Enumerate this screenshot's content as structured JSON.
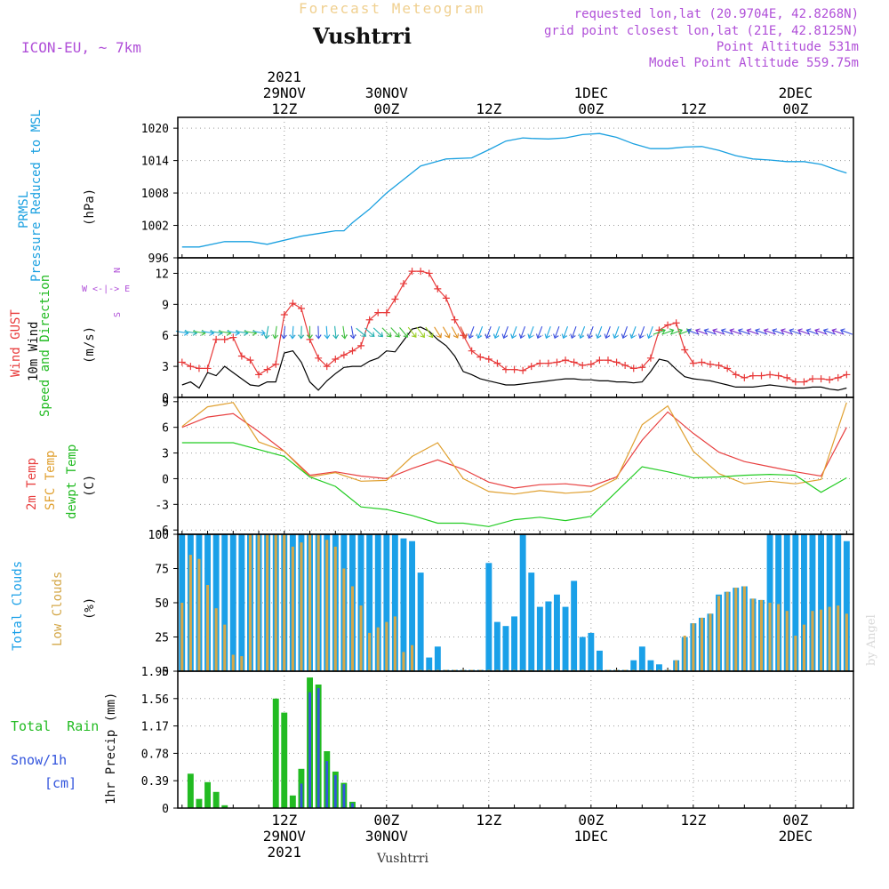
{
  "header": {
    "subtitle": "Forecast Meteogram",
    "title": "Vushtrri",
    "model": "ICON-EU, ~ 7km",
    "requested": "requested lon,lat (20.9704E, 42.8268N)",
    "grid_point": "grid point closest lon,lat (21E, 42.8125N)",
    "point_altitude": "Point Altitude 531m",
    "model_altitude": "Model Point Altitude 559.75m"
  },
  "footer": {
    "station": "Vushtrri"
  },
  "watermark": "by Angel",
  "colors": {
    "pressure": "#1aa0e0",
    "gust": "#e83a3a",
    "wind10": "#000000",
    "direction": "#22cc22",
    "temp2m": "#e84040",
    "sfctemp": "#e0a030",
    "dewpt": "#22cc22",
    "totalcloud": "#1aa0e8",
    "lowcloud": "#d4a84a",
    "rain": "#22bb22",
    "snow": "#3355dd",
    "meta": "#b04fd8"
  },
  "time_axis": {
    "top_labels": [
      {
        "t": 12,
        "lines": [
          "2021",
          "29NOV",
          "12Z"
        ]
      },
      {
        "t": 24,
        "lines": [
          "30NOV",
          "00Z"
        ]
      },
      {
        "t": 36,
        "lines": [
          "12Z"
        ]
      },
      {
        "t": 48,
        "lines": [
          "1DEC",
          "00Z"
        ]
      },
      {
        "t": 60,
        "lines": [
          "12Z"
        ]
      },
      {
        "t": 72,
        "lines": [
          "2DEC",
          "00Z"
        ]
      }
    ],
    "bottom_labels": [
      {
        "t": 12,
        "lines": [
          "12Z",
          "29NOV",
          "2021"
        ]
      },
      {
        "t": 24,
        "lines": [
          "00Z",
          "30NOV"
        ]
      },
      {
        "t": 36,
        "lines": [
          "12Z"
        ]
      },
      {
        "t": 48,
        "lines": [
          "00Z",
          "1DEC"
        ]
      },
      {
        "t": 60,
        "lines": [
          "12Z"
        ]
      },
      {
        "t": 72,
        "lines": [
          "00Z",
          "2DEC"
        ]
      }
    ]
  },
  "chart_data": [
    {
      "type": "line",
      "title": "PRMSL Pressure Reduced to MSL",
      "ylabel": "(hPa)",
      "label_lines": [
        "PRMSL",
        "Pressure Reduced to MSL"
      ],
      "ylim": [
        996,
        1022
      ],
      "yticks": [
        996,
        1002,
        1008,
        1014,
        1020
      ],
      "x_hours": [
        0,
        2,
        5,
        8,
        10,
        14,
        16,
        18,
        19,
        20,
        22,
        24,
        26,
        28,
        31,
        34,
        36,
        38,
        40,
        41,
        43,
        45,
        47,
        49,
        51,
        53,
        55,
        57,
        59,
        61,
        63,
        65,
        67,
        69,
        71,
        73,
        75,
        77,
        78
      ],
      "series": [
        {
          "name": "Pressure",
          "values": [
            998,
            998,
            999,
            999,
            998.5,
            1000,
            1000.5,
            1001,
            1001,
            1002.5,
            1005,
            1008,
            1010.5,
            1013,
            1014.3,
            1014.5,
            1016,
            1017.6,
            1018.2,
            1018.1,
            1018,
            1018.2,
            1018.8,
            1019,
            1018.3,
            1017.1,
            1016.2,
            1016.2,
            1016.5,
            1016.6,
            1015.9,
            1014.9,
            1014.3,
            1014.1,
            1013.8,
            1013.8,
            1013.3,
            1012.2,
            1011.7
          ]
        }
      ]
    },
    {
      "type": "line",
      "title": "Wind GUST, 10m Wind Speed and Direction",
      "ylabel": "(m/s)",
      "ylim": [
        0,
        13.5
      ],
      "yticks": [
        0,
        3,
        6,
        9,
        12
      ],
      "compass": [
        "N",
        "W <-|-> E",
        "S"
      ],
      "x_hours": [
        0,
        1,
        2,
        3,
        4,
        5,
        6,
        7,
        8,
        9,
        10,
        11,
        12,
        13,
        14,
        15,
        16,
        17,
        18,
        19,
        20,
        21,
        22,
        23,
        24,
        25,
        26,
        27,
        28,
        29,
        30,
        31,
        32,
        33,
        34,
        35,
        36,
        37,
        38,
        39,
        40,
        41,
        42,
        43,
        44,
        45,
        46,
        47,
        48,
        49,
        50,
        51,
        52,
        53,
        54,
        55,
        56,
        57,
        58,
        59,
        60,
        61,
        62,
        63,
        64,
        65,
        66,
        67,
        68,
        69,
        70,
        71,
        72,
        73,
        74,
        75,
        76,
        77,
        78
      ],
      "series": [
        {
          "name": "Wind GUST",
          "values": [
            3.4,
            3,
            2.8,
            2.8,
            5.6,
            5.6,
            5.8,
            4,
            3.6,
            2.2,
            2.7,
            3.2,
            8,
            9.1,
            8.6,
            5.6,
            3.8,
            3,
            3.7,
            4.1,
            4.5,
            5,
            7.5,
            8.2,
            8.2,
            9.5,
            11,
            12.2,
            12.2,
            12,
            10.5,
            9.6,
            7.5,
            6,
            4.5,
            3.9,
            3.7,
            3.3,
            2.7,
            2.7,
            2.6,
            3,
            3.3,
            3.3,
            3.4,
            3.6,
            3.4,
            3.1,
            3.2,
            3.6,
            3.6,
            3.4,
            3.1,
            2.8,
            2.9,
            3.8,
            6.5,
            7,
            7.2,
            4.6,
            3.3,
            3.4,
            3.2,
            3.1,
            2.8,
            2.2,
            1.9,
            2.1,
            2.1,
            2.2,
            2.1,
            1.9,
            1.5,
            1.5,
            1.8,
            1.8,
            1.7,
            1.9,
            2.2
          ]
        },
        {
          "name": "10m Wind",
          "values": [
            1.2,
            1.5,
            0.9,
            2.4,
            2.1,
            3,
            2.4,
            1.8,
            1.2,
            1.1,
            1.5,
            1.5,
            4.3,
            4.5,
            3.4,
            1.5,
            0.7,
            1.6,
            2.3,
            2.9,
            3,
            3,
            3.5,
            3.8,
            4.5,
            4.4,
            5.5,
            6.6,
            6.8,
            6.4,
            5.6,
            5,
            4,
            2.5,
            2.2,
            1.8,
            1.6,
            1.4,
            1.2,
            1.2,
            1.3,
            1.4,
            1.5,
            1.6,
            1.7,
            1.8,
            1.8,
            1.7,
            1.7,
            1.6,
            1.6,
            1.5,
            1.5,
            1.4,
            1.5,
            2.5,
            3.7,
            3.5,
            2.7,
            2,
            1.8,
            1.7,
            1.6,
            1.4,
            1.2,
            1,
            1,
            1,
            1.1,
            1.2,
            1.1,
            1,
            0.9,
            0.9,
            1,
            1,
            0.8,
            0.7,
            0.9
          ]
        }
      ]
    },
    {
      "type": "line",
      "title": "2m Temp, SFC Temp, dewpt Temp",
      "ylabel": "(C)",
      "ylim": [
        -6.5,
        9.5
      ],
      "yticks": [
        -6,
        -3,
        0,
        3,
        6,
        9
      ],
      "x_hours": [
        0,
        3,
        6,
        9,
        12,
        15,
        18,
        21,
        24,
        27,
        30,
        33,
        36,
        39,
        42,
        45,
        48,
        51,
        54,
        57,
        60,
        63,
        66,
        69,
        72,
        75,
        78
      ],
      "series": [
        {
          "name": "2m Temp",
          "values": [
            6,
            7.2,
            7.6,
            5.5,
            3.2,
            0.4,
            0.8,
            0.3,
            0,
            1.2,
            2.2,
            1.1,
            -0.4,
            -1.1,
            -0.7,
            -0.6,
            -0.9,
            0.2,
            4.5,
            7.8,
            5.3,
            3.1,
            2,
            1.4,
            0.8,
            0.3,
            6
          ]
        },
        {
          "name": "SFC Temp",
          "values": [
            6.1,
            8.4,
            8.9,
            4.3,
            3.2,
            0.2,
            0.7,
            -0.3,
            -0.2,
            2.6,
            4.2,
            0,
            -1.5,
            -1.8,
            -1.4,
            -1.7,
            -1.5,
            0,
            6.3,
            8.5,
            3.2,
            0.6,
            -0.6,
            -0.3,
            -0.6,
            -0.1,
            8.9
          ]
        },
        {
          "name": "dewpt Temp",
          "values": [
            4.2,
            4.2,
            4.2,
            3.4,
            2.6,
            0.2,
            -0.9,
            -3.3,
            -3.6,
            -4.3,
            -5.2,
            -5.2,
            -5.6,
            -4.8,
            -4.5,
            -4.9,
            -4.4,
            -1.5,
            1.4,
            0.8,
            0.1,
            0.2,
            0.4,
            0.5,
            0.4,
            -1.6,
            0.1
          ]
        }
      ]
    },
    {
      "type": "bar",
      "title": "Total Clouds, Low Clouds",
      "ylabel": "(%)",
      "ylim": [
        0,
        100
      ],
      "yticks": [
        0,
        25,
        50,
        75,
        100
      ],
      "x_hours": [
        0,
        1,
        2,
        3,
        4,
        5,
        6,
        7,
        8,
        9,
        10,
        11,
        12,
        13,
        14,
        15,
        16,
        17,
        18,
        19,
        20,
        21,
        22,
        23,
        24,
        25,
        26,
        27,
        28,
        29,
        30,
        31,
        32,
        33,
        34,
        35,
        36,
        37,
        38,
        39,
        40,
        41,
        42,
        43,
        44,
        45,
        46,
        47,
        48,
        49,
        50,
        51,
        52,
        53,
        54,
        55,
        56,
        57,
        58,
        59,
        60,
        61,
        62,
        63,
        64,
        65,
        66,
        67,
        68,
        69,
        70,
        71,
        72,
        73,
        74,
        75,
        76,
        77,
        78
      ],
      "series": [
        {
          "name": "Total Clouds",
          "values": [
            100,
            100,
            100,
            100,
            100,
            100,
            100,
            100,
            100,
            100,
            100,
            100,
            100,
            100,
            100,
            100,
            100,
            100,
            100,
            100,
            100,
            100,
            100,
            100,
            100,
            100,
            97,
            95,
            72,
            10,
            18,
            1,
            1,
            1,
            1,
            1,
            79,
            36,
            33,
            40,
            100,
            72,
            47,
            51,
            56,
            47,
            66,
            25,
            28,
            15,
            1,
            1,
            1,
            8,
            18,
            8,
            5,
            1,
            8,
            25,
            35,
            39,
            42,
            56,
            58,
            61,
            62,
            53,
            52,
            100,
            100,
            100,
            100,
            100,
            100,
            100,
            100,
            100,
            95
          ]
        },
        {
          "name": "Low Clouds",
          "values": [
            50,
            85,
            82,
            63,
            46,
            34,
            12,
            11,
            100,
            100,
            100,
            100,
            100,
            91,
            94,
            100,
            100,
            96,
            91,
            75,
            62,
            48,
            28,
            32,
            36,
            40,
            14,
            19,
            1,
            1,
            1,
            1,
            1,
            1,
            1,
            1,
            1,
            1,
            1,
            1,
            1,
            1,
            1,
            1,
            1,
            1,
            1,
            1,
            1,
            1,
            1,
            1,
            1,
            1,
            1,
            1,
            1,
            1,
            8,
            26,
            35,
            39,
            42,
            55,
            58,
            61,
            62,
            53,
            52,
            50,
            49,
            44,
            26,
            34,
            44,
            45,
            47,
            48,
            42
          ]
        }
      ]
    },
    {
      "type": "bar",
      "title": "Total Rain, Snow/1h [cm]",
      "ylabel": "1hr Precip (mm)",
      "ylim": [
        0,
        1.95
      ],
      "yticks": [
        0,
        0.39,
        0.78,
        1.17,
        1.56,
        1.95
      ],
      "x_hours": [
        1,
        2,
        3,
        4,
        5,
        11,
        12,
        13,
        14,
        15,
        16,
        17,
        18,
        19,
        20
      ],
      "series": [
        {
          "name": "Total Rain",
          "values": [
            0.49,
            0.13,
            0.37,
            0.23,
            0.04,
            1.56,
            1.36,
            0.18,
            0.56,
            1.86,
            1.76,
            0.81,
            0.52,
            0.36,
            0.09
          ]
        },
        {
          "name": "Snow/1h",
          "values": [
            0,
            0,
            0,
            0,
            0,
            0,
            0,
            0,
            0.35,
            1.65,
            1.71,
            0.67,
            0.47,
            0.34,
            0.07
          ]
        }
      ]
    }
  ]
}
